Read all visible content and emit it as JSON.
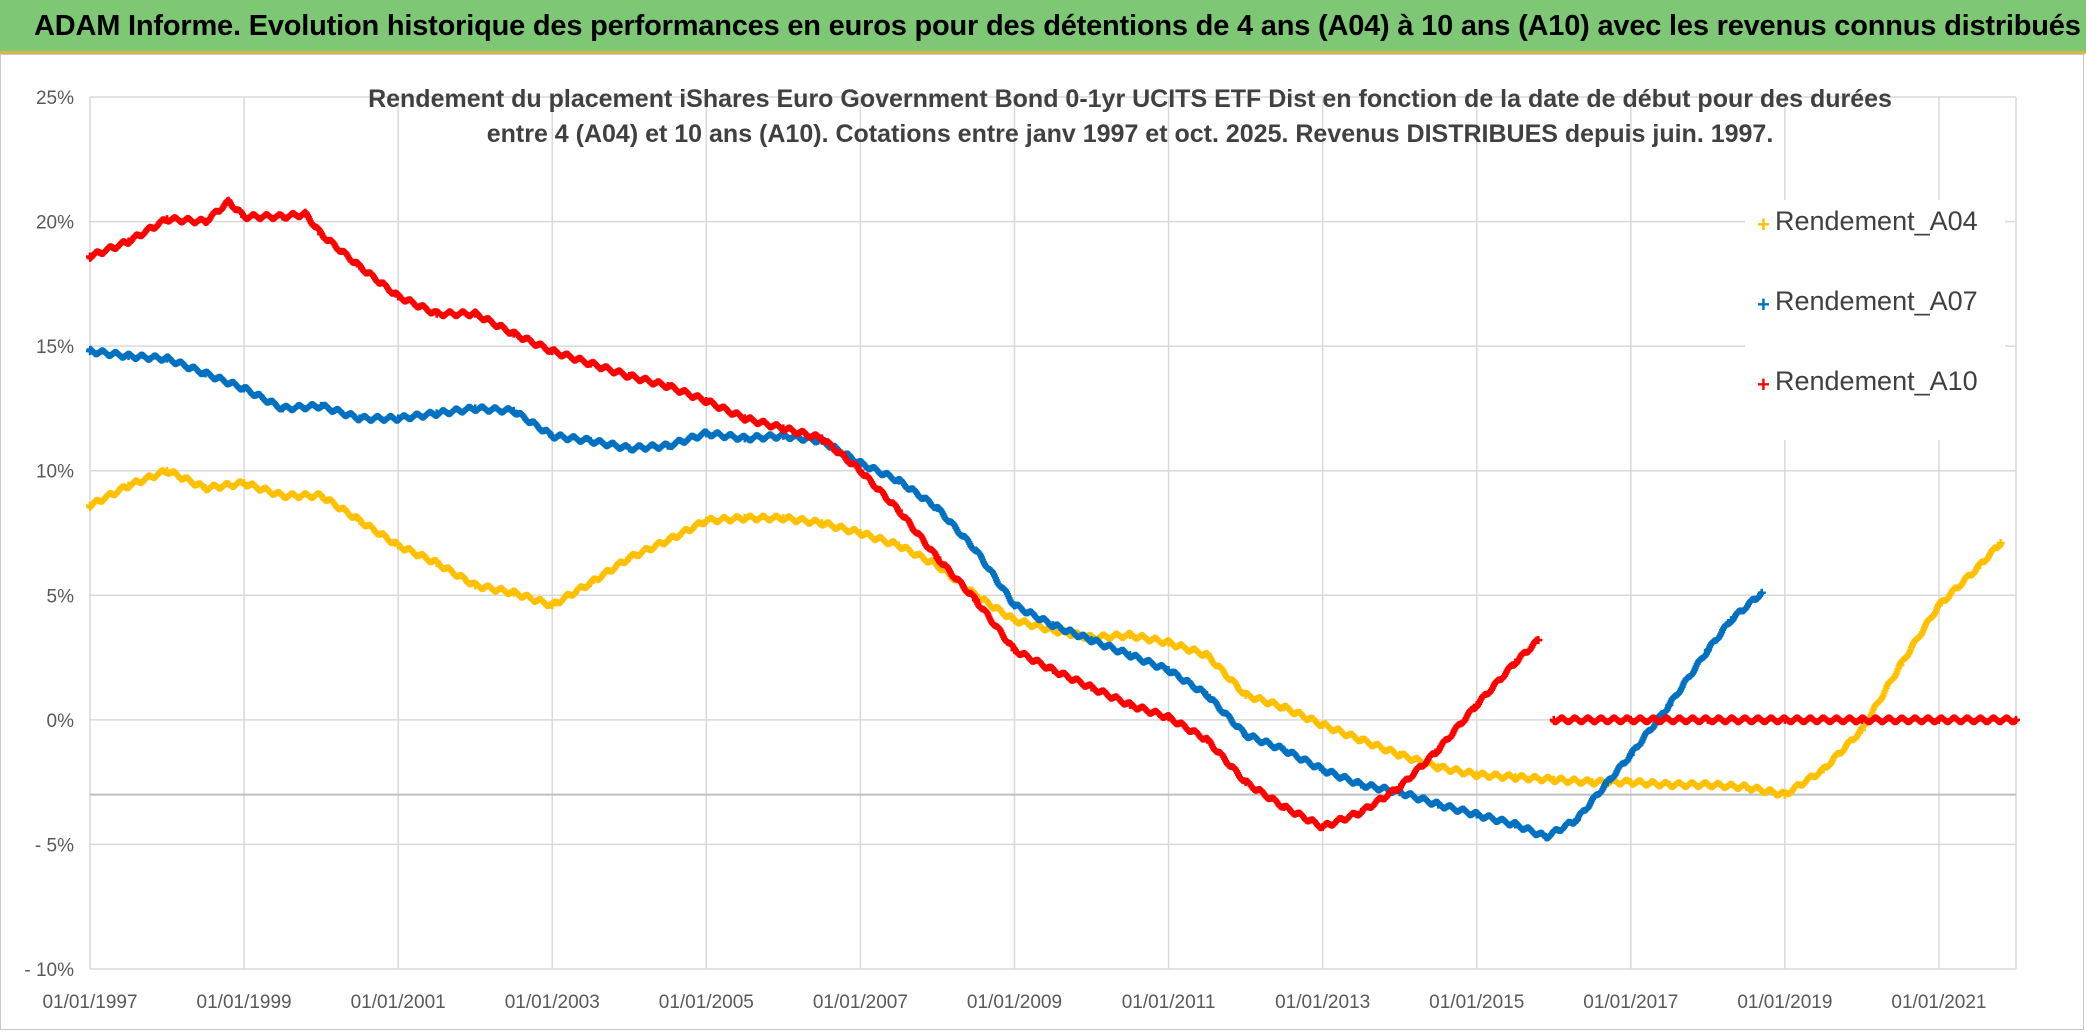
{
  "banner": {
    "title": "ADAM Informe. Evolution historique des performances en euros pour des détentions de 4 ans (A04) à 10 ans (A10) avec les revenus connus distribués"
  },
  "chart_data": {
    "type": "scatter",
    "title_line1": "Rendement du placement iShares Euro Government Bond 0-1yr UCITS ETF Dist en fonction de la date de début pour des durées",
    "title_line2": "entre 4 (A04) et 10 ans (A10). Cotations entre janv 1997 et oct. 2025. Revenus DISTRIBUES depuis juin. 1997.",
    "xlabel": "",
    "ylabel": "",
    "xlim": [
      1997.0,
      2022.0
    ],
    "ylim": [
      -10,
      25
    ],
    "y_ticks": [
      25,
      20,
      15,
      10,
      5,
      0,
      -5,
      -10
    ],
    "y_tick_labels": [
      "25%",
      "20%",
      "15%",
      "10%",
      "5%",
      "0%",
      "- 5%",
      "- 10%"
    ],
    "x_ticks": [
      1997,
      1999,
      2001,
      2003,
      2005,
      2007,
      2009,
      2011,
      2013,
      2015,
      2017,
      2019,
      2021
    ],
    "x_tick_labels": [
      "01/01/1997",
      "01/01/1999",
      "01/01/2001",
      "01/01/2003",
      "01/01/2005",
      "01/01/2007",
      "01/01/2009",
      "01/01/2011",
      "01/01/2013",
      "01/01/2015",
      "01/01/2017",
      "01/01/2019",
      "01/01/2021"
    ],
    "reference_line_y": -3,
    "grid": true,
    "legend_position": "right",
    "series": [
      {
        "name": "Rendement_A04",
        "color": "#ffc000",
        "x": [
          1997.0,
          1997.5,
          1998.0,
          1998.5,
          1999.0,
          1999.5,
          2000.0,
          2000.5,
          2001.0,
          2001.5,
          2002.0,
          2002.5,
          2003.0,
          2003.5,
          2004.0,
          2004.5,
          2005.0,
          2005.5,
          2006.0,
          2006.5,
          2007.0,
          2007.5,
          2008.0,
          2008.5,
          2009.0,
          2009.5,
          2010.0,
          2010.5,
          2011.0,
          2011.5,
          2012.0,
          2012.5,
          2013.0,
          2013.5,
          2014.0,
          2014.5,
          2015.0,
          2015.5,
          2016.0,
          2016.5,
          2017.0,
          2017.5,
          2018.0,
          2018.5,
          2019.0,
          2019.5,
          2020.0,
          2020.5,
          2021.0,
          2021.5,
          2021.8
        ],
        "values": [
          8.6,
          9.4,
          10.0,
          9.3,
          9.5,
          9.0,
          9.0,
          8.0,
          7.0,
          6.3,
          5.4,
          5.1,
          4.6,
          5.5,
          6.5,
          7.2,
          8.0,
          8.1,
          8.1,
          7.9,
          7.5,
          7.0,
          6.2,
          5.0,
          4.0,
          3.6,
          3.3,
          3.4,
          3.1,
          2.6,
          1.0,
          0.5,
          -0.2,
          -0.8,
          -1.4,
          -1.9,
          -2.2,
          -2.3,
          -2.4,
          -2.5,
          -2.5,
          -2.6,
          -2.6,
          -2.7,
          -3.0,
          -2.0,
          -0.4,
          2.2,
          4.6,
          6.1,
          7.1
        ]
      },
      {
        "name": "Rendement_A07",
        "color": "#0070c0",
        "x": [
          1997.0,
          1997.5,
          1998.0,
          1998.5,
          1999.0,
          1999.5,
          2000.0,
          2000.5,
          2001.0,
          2001.5,
          2002.0,
          2002.5,
          2003.0,
          2003.5,
          2004.0,
          2004.5,
          2005.0,
          2005.5,
          2006.0,
          2006.5,
          2007.0,
          2007.5,
          2008.0,
          2008.5,
          2009.0,
          2009.5,
          2010.0,
          2010.5,
          2011.0,
          2011.5,
          2012.0,
          2012.5,
          2013.0,
          2013.5,
          2014.0,
          2014.5,
          2015.0,
          2015.5,
          2015.9,
          2016.3,
          2016.7,
          2017.0,
          2017.5,
          2018.0,
          2018.3,
          2018.7
        ],
        "values": [
          14.8,
          14.6,
          14.5,
          13.9,
          13.3,
          12.5,
          12.6,
          12.1,
          12.1,
          12.3,
          12.5,
          12.4,
          11.4,
          11.2,
          10.9,
          11.0,
          11.5,
          11.3,
          11.4,
          11.2,
          10.3,
          9.6,
          8.5,
          6.8,
          4.6,
          3.8,
          3.2,
          2.6,
          2.0,
          1.0,
          -0.6,
          -1.2,
          -2.0,
          -2.6,
          -2.9,
          -3.4,
          -3.8,
          -4.2,
          -4.7,
          -4.0,
          -2.5,
          -1.4,
          0.6,
          2.8,
          4.0,
          5.1
        ]
      },
      {
        "name": "Rendement_A10",
        "color": "#ff0000",
        "x": [
          1997.0,
          1997.5,
          1998.0,
          1998.5,
          1998.8,
          1999.0,
          1999.5,
          1999.8,
          2000.0,
          2000.5,
          2001.0,
          2001.5,
          2002.0,
          2002.5,
          2003.0,
          2003.5,
          2004.0,
          2004.5,
          2005.0,
          2005.5,
          2006.0,
          2006.5,
          2007.0,
          2007.5,
          2008.0,
          2008.5,
          2009.0,
          2009.5,
          2010.0,
          2010.5,
          2011.0,
          2011.5,
          2012.0,
          2012.5,
          2013.0,
          2013.5,
          2014.0,
          2014.5,
          2015.0,
          2015.5,
          2015.8,
          2016.0,
          2017.0,
          2018.0,
          2019.0,
          2020.0,
          2021.0,
          2022.0
        ],
        "values": [
          18.6,
          19.2,
          20.1,
          20.0,
          20.8,
          20.2,
          20.2,
          20.3,
          19.5,
          18.2,
          17.0,
          16.3,
          16.3,
          15.5,
          14.8,
          14.3,
          13.8,
          13.4,
          12.8,
          12.1,
          11.7,
          11.3,
          10.0,
          8.4,
          6.5,
          4.8,
          2.8,
          2.0,
          1.3,
          0.6,
          0.1,
          -0.8,
          -2.5,
          -3.5,
          -4.3,
          -3.7,
          -2.7,
          -1.2,
          0.6,
          2.3,
          3.2,
          0.0,
          0.0,
          0.0,
          0.0,
          0.0,
          0.0,
          0.0
        ]
      }
    ]
  }
}
